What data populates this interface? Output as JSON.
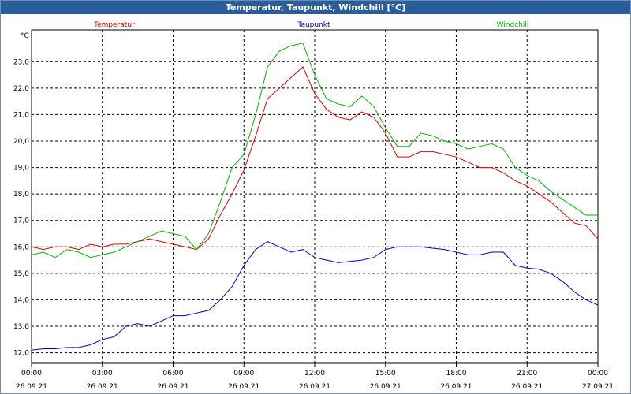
{
  "chart_data": {
    "type": "line",
    "title": "Temperatur, Taupunkt, Windchill [°C]",
    "ylabel": "°C",
    "ylim": [
      11.6,
      24.2
    ],
    "xlim": [
      0,
      24
    ],
    "grid": true,
    "legend_position": "top",
    "y_ticks": [
      12.0,
      13.0,
      14.0,
      15.0,
      16.0,
      17.0,
      18.0,
      19.0,
      20.0,
      21.0,
      22.0,
      23.0
    ],
    "y_tick_labels": [
      "12,0",
      "13,0",
      "14,0",
      "15,0",
      "16,0",
      "17,0",
      "18,0",
      "19,0",
      "20,0",
      "21,0",
      "22,0",
      "23,0"
    ],
    "x_ticks": [
      0,
      3,
      6,
      9,
      12,
      15,
      18,
      21,
      24
    ],
    "x_tick_labels": [
      {
        "time": "00:00",
        "date": "26.09.21"
      },
      {
        "time": "03:00",
        "date": "26.09.21"
      },
      {
        "time": "06:00",
        "date": "26.09.21"
      },
      {
        "time": "09:00",
        "date": "26.09.21"
      },
      {
        "time": "12:00",
        "date": "26.09.21"
      },
      {
        "time": "15:00",
        "date": "26.09.21"
      },
      {
        "time": "18:00",
        "date": "26.09.21"
      },
      {
        "time": "21:00",
        "date": "26.09.21"
      },
      {
        "time": "00:00",
        "date": "27.09.21"
      }
    ],
    "series": [
      {
        "name": "Temperatur",
        "color": "#e00000",
        "x": [
          0,
          0.5,
          1,
          1.5,
          2,
          2.5,
          3,
          3.5,
          4,
          4.5,
          5,
          5.5,
          6,
          6.5,
          7,
          7.5,
          8,
          8.5,
          9,
          9.5,
          10,
          10.5,
          11,
          11.5,
          12,
          12.5,
          13,
          13.5,
          14,
          14.5,
          15,
          15.5,
          16,
          16.5,
          17,
          17.5,
          18,
          18.5,
          19,
          19.5,
          20,
          20.5,
          21,
          21.5,
          22,
          22.5,
          23,
          23.5,
          24
        ],
        "values": [
          16.0,
          15.9,
          16.0,
          16.0,
          15.9,
          16.1,
          16.0,
          16.1,
          16.1,
          16.2,
          16.3,
          16.2,
          16.1,
          16.0,
          15.9,
          16.3,
          17.2,
          18.0,
          18.9,
          20.2,
          21.6,
          22.0,
          22.4,
          22.8,
          21.8,
          21.2,
          20.9,
          20.8,
          21.1,
          20.9,
          20.3,
          19.4,
          19.4,
          19.6,
          19.6,
          19.5,
          19.4,
          19.2,
          19.0,
          19.0,
          18.8,
          18.5,
          18.3,
          18.0,
          17.7,
          17.3,
          16.9,
          16.8,
          16.3
        ]
      },
      {
        "name": "Taupunkt",
        "color": "#0000c8",
        "x": [
          0,
          0.5,
          1,
          1.5,
          2,
          2.5,
          3,
          3.5,
          4,
          4.5,
          5,
          5.5,
          6,
          6.5,
          7,
          7.5,
          8,
          8.5,
          9,
          9.5,
          10,
          10.5,
          11,
          11.5,
          12,
          12.5,
          13,
          13.5,
          14,
          14.5,
          15,
          15.5,
          16,
          16.5,
          17,
          17.5,
          18,
          18.5,
          19,
          19.5,
          20,
          20.5,
          21,
          21.5,
          22,
          22.5,
          23,
          23.5,
          24
        ],
        "values": [
          12.1,
          12.15,
          12.15,
          12.2,
          12.2,
          12.3,
          12.5,
          12.6,
          13.0,
          13.1,
          13.0,
          13.2,
          13.4,
          13.4,
          13.5,
          13.6,
          14.0,
          14.5,
          15.3,
          15.9,
          16.2,
          16.0,
          15.8,
          15.9,
          15.6,
          15.5,
          15.4,
          15.45,
          15.5,
          15.6,
          15.9,
          16.0,
          16.0,
          16.0,
          15.95,
          15.9,
          15.8,
          15.7,
          15.7,
          15.8,
          15.8,
          15.3,
          15.2,
          15.15,
          15.0,
          14.7,
          14.3,
          14.0,
          13.8
        ]
      },
      {
        "name": "Windchill",
        "color": "#00b400",
        "x": [
          0,
          0.5,
          1,
          1.5,
          2,
          2.5,
          3,
          3.5,
          4,
          4.5,
          5,
          5.5,
          6,
          6.5,
          7,
          7.5,
          8,
          8.5,
          9,
          9.5,
          10,
          10.5,
          11,
          11.5,
          12,
          12.5,
          13,
          13.5,
          14,
          14.5,
          15,
          15.5,
          16,
          16.5,
          17,
          17.5,
          18,
          18.5,
          19,
          19.5,
          20,
          20.5,
          21,
          21.5,
          22,
          22.5,
          23,
          23.5,
          24
        ],
        "values": [
          15.7,
          15.8,
          15.6,
          15.9,
          15.8,
          15.6,
          15.7,
          15.8,
          16.0,
          16.2,
          16.4,
          16.6,
          16.5,
          16.4,
          15.9,
          16.5,
          17.7,
          19.0,
          19.5,
          21.0,
          22.8,
          23.4,
          23.6,
          23.7,
          22.5,
          21.6,
          21.4,
          21.3,
          21.7,
          21.3,
          20.5,
          19.8,
          19.8,
          20.3,
          20.2,
          20.0,
          19.9,
          19.7,
          19.8,
          19.9,
          19.7,
          19.0,
          18.7,
          18.5,
          18.1,
          17.8,
          17.5,
          17.2,
          17.2
        ]
      }
    ]
  }
}
